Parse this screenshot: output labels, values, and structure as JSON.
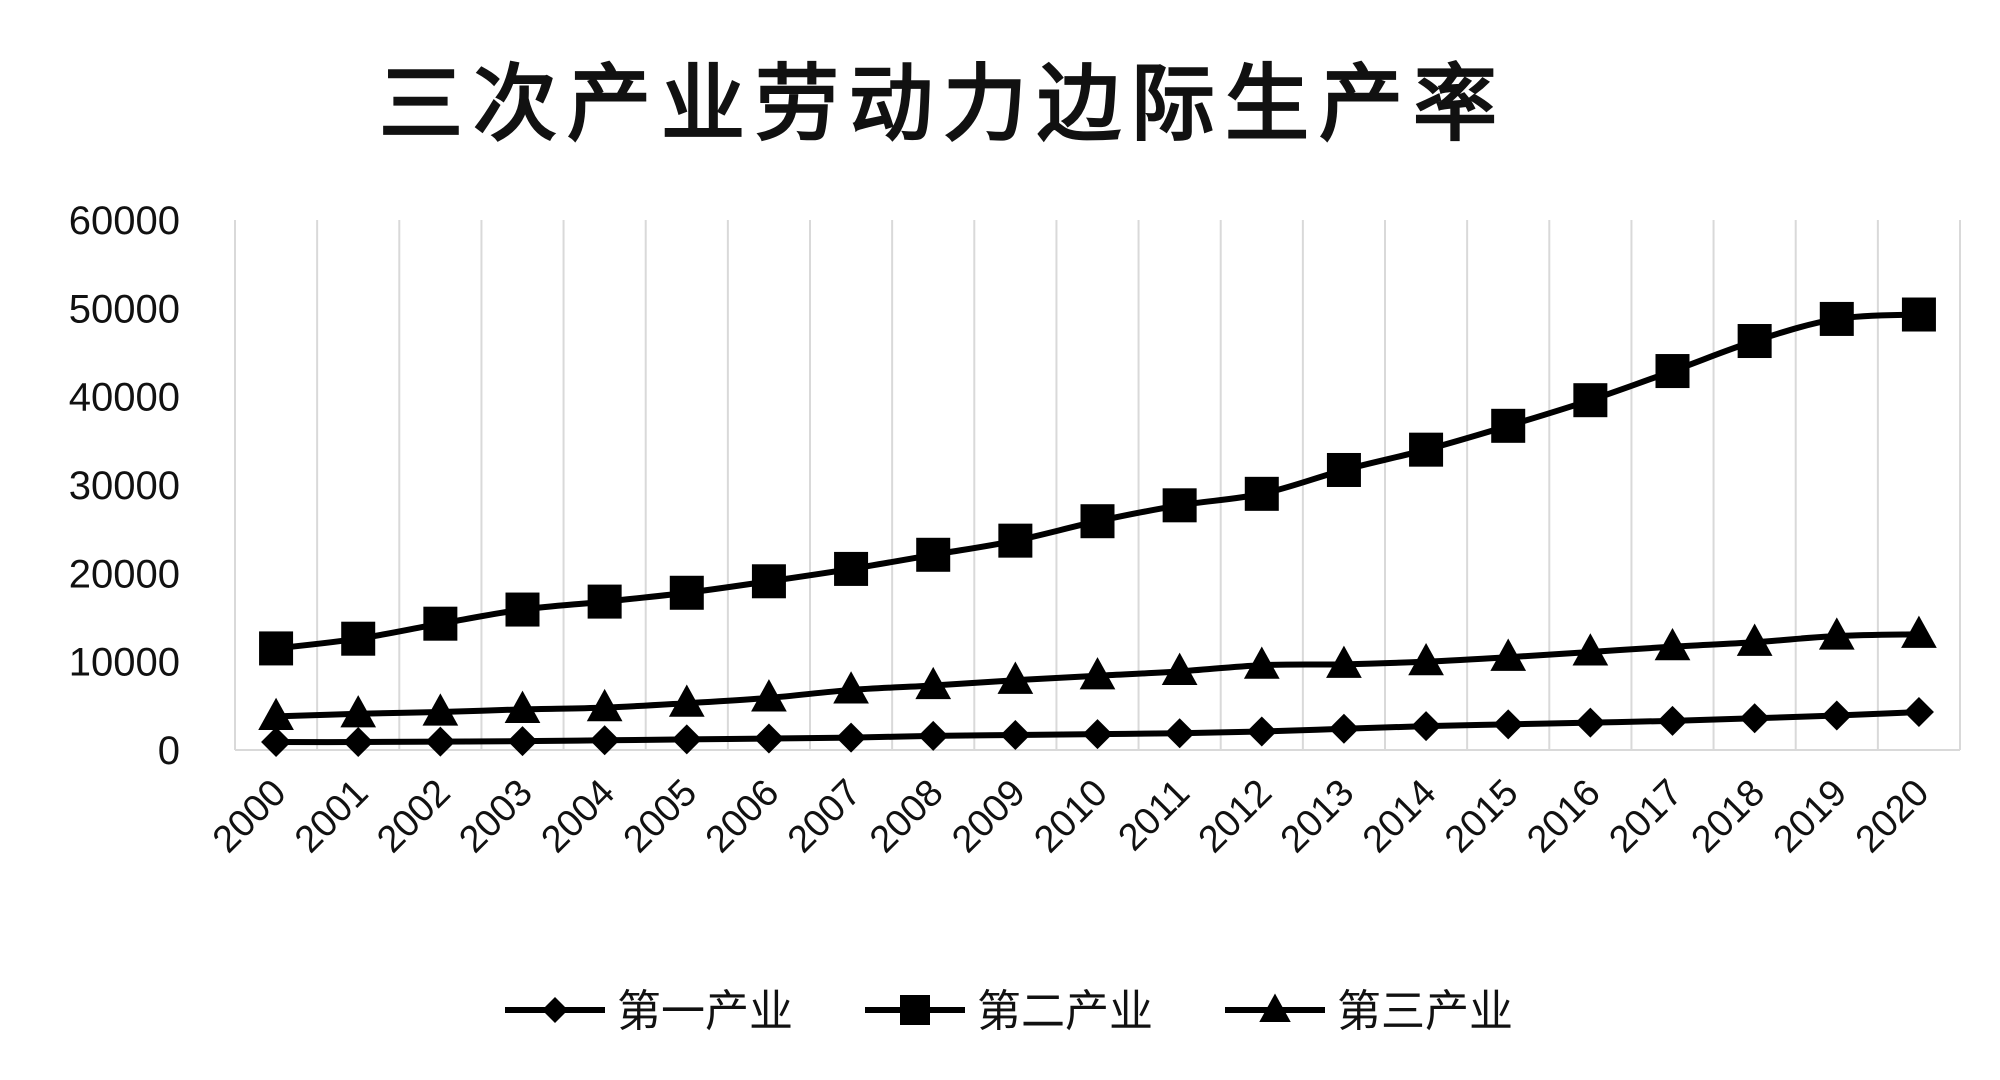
{
  "chart_data": {
    "type": "line",
    "title": "三次产业劳动力边际生产率",
    "xlabel": "",
    "ylabel": "",
    "x": [
      "2000",
      "2001",
      "2002",
      "2003",
      "2004",
      "2005",
      "2006",
      "2007",
      "2008",
      "2009",
      "2010",
      "2011",
      "2012",
      "2013",
      "2014",
      "2015",
      "2016",
      "2017",
      "2018",
      "2019",
      "2020"
    ],
    "ylim": [
      0,
      60000
    ],
    "yticks": [
      "0",
      "10000",
      "20000",
      "30000",
      "40000",
      "50000",
      "60000"
    ],
    "grid": "vertical",
    "legend_position": "bottom",
    "series": [
      {
        "name": "第一产业",
        "marker": "diamond",
        "color": "#000000",
        "values": [
          900,
          900,
          950,
          1000,
          1100,
          1200,
          1300,
          1400,
          1600,
          1700,
          1800,
          1900,
          2100,
          2400,
          2700,
          2900,
          3100,
          3300,
          3600,
          3900,
          4300
        ]
      },
      {
        "name": "第二产业",
        "marker": "square",
        "color": "#000000",
        "values": [
          11500,
          12600,
          14300,
          15900,
          16800,
          17800,
          19100,
          20500,
          22100,
          23700,
          25900,
          27700,
          29000,
          31700,
          34000,
          36700,
          39600,
          42900,
          46300,
          48800,
          49300
        ]
      },
      {
        "name": "第三产业",
        "marker": "triangle",
        "color": "#000000",
        "values": [
          3800,
          4100,
          4300,
          4600,
          4800,
          5300,
          5900,
          6800,
          7300,
          7900,
          8400,
          8900,
          9600,
          9700,
          10000,
          10500,
          11100,
          11700,
          12200,
          12900,
          13100
        ]
      }
    ]
  }
}
